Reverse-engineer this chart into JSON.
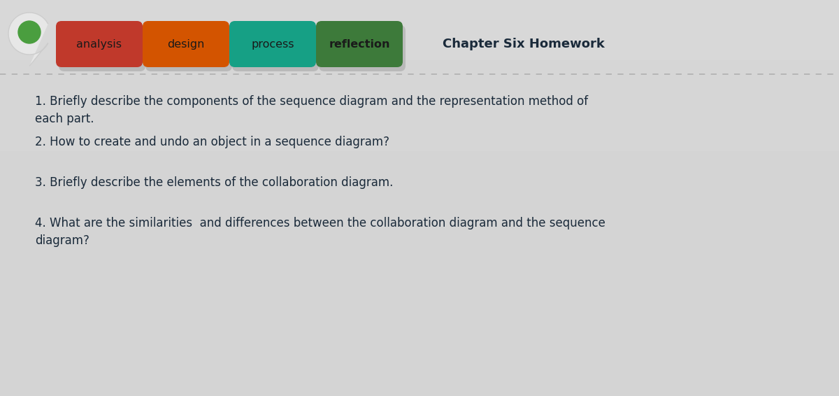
{
  "bg_top_color": "#d8d8d8",
  "bg_bottom_color": "#c8ccd0",
  "header_bg": "#cccccc",
  "tabs": [
    {
      "label": "analysis",
      "color": "#c0392b",
      "bold": false
    },
    {
      "label": "design",
      "color": "#d35400",
      "bold": false
    },
    {
      "label": "process",
      "color": "#16a085",
      "bold": false
    },
    {
      "label": "reflection",
      "color": "#3d7a3a",
      "bold": true
    }
  ],
  "chapter_title": "Chapter Six Homework",
  "questions": [
    "1. Briefly describe the components of the sequence diagram and the representation method of\neach part.",
    "2. How to create and undo an object in a sequence diagram?",
    "3. Briefly describe the elements of the collaboration diagram.",
    "4. What are the similarities  and differences between the collaboration diagram and the sequence\ndiagram?"
  ],
  "tab_text_color": "#1a1a1a",
  "chapter_title_color": "#1a2a3a",
  "question_color": "#1a2a3a",
  "pin_outer_color": "#f0f0f0",
  "pin_inner_color": "#4a9e3f",
  "dotted_line_color": "#b0b0b0",
  "header_line_color": "#b8b8b8"
}
